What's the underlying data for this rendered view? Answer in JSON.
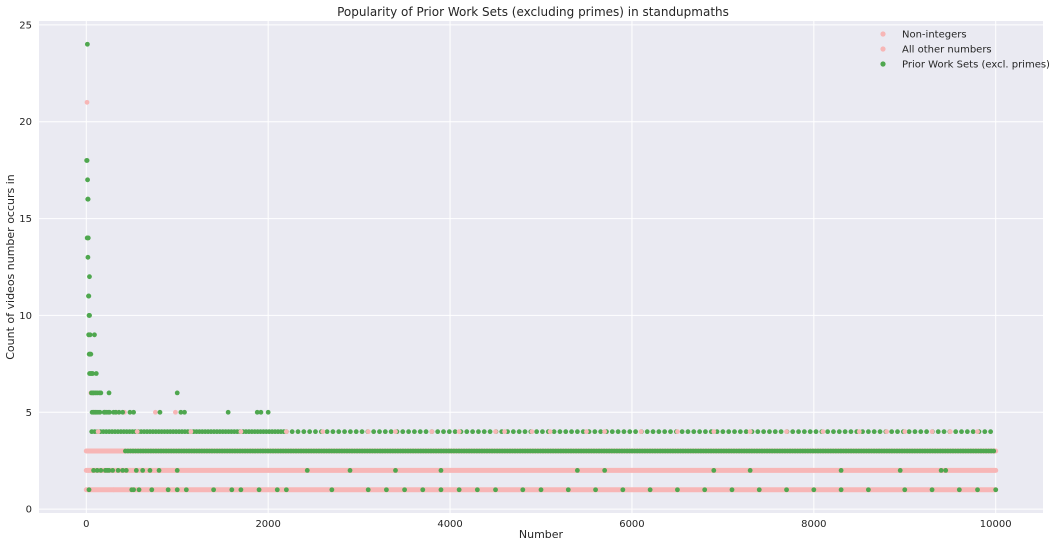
{
  "chart_data": {
    "type": "scatter",
    "title": "Popularity of Prior Work Sets (excluding primes) in standupmaths",
    "xlabel": "Number",
    "ylabel": "Count of videos number occurs in",
    "xlim": [
      -520,
      10520
    ],
    "ylim": [
      -0.2,
      25.2
    ],
    "xticks": [
      0,
      2000,
      4000,
      6000,
      8000,
      10000
    ],
    "xtick_labels": [
      "0",
      "2000",
      "4000",
      "6000",
      "8000",
      "10000"
    ],
    "yticks": [
      0,
      5,
      10,
      15,
      20,
      25
    ],
    "ytick_labels": [
      "0",
      "5",
      "10",
      "15",
      "20",
      "25"
    ],
    "grid": true,
    "legend_position": "top-right",
    "background": "#eaeaf2",
    "series": [
      {
        "name": "Non-integers",
        "color": "#f7b6b6",
        "points": [
          [
            10,
            3
          ],
          [
            25,
            2
          ],
          [
            60,
            2
          ],
          [
            120,
            2
          ],
          [
            300,
            1
          ]
        ]
      },
      {
        "name": "All other numbers",
        "color": "#f7b6b6",
        "points": [
          [
            8,
            21
          ],
          [
            14,
            14
          ],
          [
            30,
            9
          ],
          [
            50,
            6
          ],
          [
            80,
            5
          ],
          [
            130,
            4
          ],
          [
            220,
            5
          ],
          [
            330,
            5
          ],
          [
            420,
            5
          ],
          [
            560,
            4
          ],
          [
            760,
            5
          ],
          [
            980,
            5
          ],
          [
            1150,
            4
          ],
          [
            1700,
            4
          ],
          [
            2200,
            4
          ],
          [
            2600,
            4
          ],
          [
            3100,
            4
          ],
          [
            3400,
            4
          ],
          [
            3800,
            4
          ],
          [
            4100,
            4
          ],
          [
            4500,
            4
          ],
          [
            4600,
            4
          ],
          [
            4900,
            4
          ],
          [
            5100,
            4
          ],
          [
            5500,
            4
          ],
          [
            5700,
            4
          ],
          [
            6100,
            4
          ],
          [
            6500,
            4
          ],
          [
            6900,
            4
          ],
          [
            7300,
            4
          ],
          [
            7700,
            4
          ],
          [
            8100,
            4
          ],
          [
            8500,
            4
          ],
          [
            8800,
            4
          ],
          [
            9000,
            4
          ],
          [
            9300,
            4
          ],
          [
            9500,
            4
          ],
          [
            9800,
            4
          ]
        ],
        "bands": [
          {
            "y": 1,
            "x_from": 0,
            "x_to": 10000
          },
          {
            "y": 2,
            "x_from": 0,
            "x_to": 10000
          },
          {
            "y": 3,
            "x_from": 0,
            "x_to": 10000
          }
        ]
      },
      {
        "name": "Prior Work Sets (excl. primes)",
        "color": "#4fa74f",
        "points": [
          [
            12,
            24
          ],
          [
            4,
            18
          ],
          [
            9,
            18
          ],
          [
            14,
            17
          ],
          [
            16,
            16
          ],
          [
            20,
            16
          ],
          [
            10,
            14
          ],
          [
            22,
            14
          ],
          [
            18,
            13
          ],
          [
            35,
            12
          ],
          [
            24,
            11
          ],
          [
            28,
            11
          ],
          [
            30,
            10
          ],
          [
            36,
            10
          ],
          [
            26,
            9
          ],
          [
            42,
            9
          ],
          [
            90,
            9
          ],
          [
            32,
            8
          ],
          [
            40,
            8
          ],
          [
            50,
            8
          ],
          [
            36,
            7
          ],
          [
            48,
            7
          ],
          [
            60,
            7
          ],
          [
            70,
            7
          ],
          [
            110,
            7
          ],
          [
            56,
            6
          ],
          [
            72,
            6
          ],
          [
            80,
            6
          ],
          [
            100,
            6
          ],
          [
            120,
            6
          ],
          [
            144,
            6
          ],
          [
            160,
            6
          ],
          [
            250,
            6
          ],
          [
            1000,
            6
          ],
          [
            64,
            5
          ],
          [
            81,
            5
          ],
          [
            96,
            5
          ],
          [
            108,
            5
          ],
          [
            128,
            5
          ],
          [
            150,
            5
          ],
          [
            196,
            5
          ],
          [
            200,
            5
          ],
          [
            216,
            5
          ],
          [
            240,
            5
          ],
          [
            256,
            5
          ],
          [
            300,
            5
          ],
          [
            324,
            5
          ],
          [
            360,
            5
          ],
          [
            400,
            5
          ],
          [
            480,
            5
          ],
          [
            520,
            5
          ],
          [
            810,
            5
          ],
          [
            1040,
            5
          ],
          [
            1080,
            5
          ],
          [
            1560,
            5
          ],
          [
            1880,
            5
          ],
          [
            1920,
            5
          ],
          [
            2000,
            5
          ],
          [
            30,
            1
          ],
          [
            500,
            1
          ],
          [
            520,
            1
          ],
          [
            580,
            1
          ],
          [
            720,
            1
          ],
          [
            900,
            1
          ],
          [
            1000,
            1
          ],
          [
            1100,
            1
          ],
          [
            1400,
            1
          ],
          [
            1600,
            1
          ],
          [
            1700,
            1
          ],
          [
            1900,
            1
          ],
          [
            2100,
            1
          ],
          [
            2200,
            1
          ],
          [
            2700,
            1
          ],
          [
            3100,
            1
          ],
          [
            3300,
            1
          ],
          [
            3500,
            1
          ],
          [
            3700,
            1
          ],
          [
            3900,
            1
          ],
          [
            4100,
            1
          ],
          [
            4300,
            1
          ],
          [
            4500,
            1
          ],
          [
            4800,
            1
          ],
          [
            5000,
            1
          ],
          [
            5300,
            1
          ],
          [
            5600,
            1
          ],
          [
            5900,
            1
          ],
          [
            6200,
            1
          ],
          [
            6500,
            1
          ],
          [
            6800,
            1
          ],
          [
            7100,
            1
          ],
          [
            7400,
            1
          ],
          [
            7700,
            1
          ],
          [
            8000,
            1
          ],
          [
            8300,
            1
          ],
          [
            8600,
            1
          ],
          [
            9000,
            1
          ],
          [
            9300,
            1
          ],
          [
            9600,
            1
          ],
          [
            9800,
            1
          ],
          [
            10000,
            1
          ],
          [
            80,
            2
          ],
          [
            120,
            2
          ],
          [
            160,
            2
          ],
          [
            210,
            2
          ],
          [
            230,
            2
          ],
          [
            250,
            2
          ],
          [
            290,
            2
          ],
          [
            350,
            2
          ],
          [
            400,
            2
          ],
          [
            440,
            2
          ],
          [
            550,
            2
          ],
          [
            620,
            2
          ],
          [
            700,
            2
          ],
          [
            800,
            2
          ],
          [
            1000,
            2
          ],
          [
            2430,
            2
          ],
          [
            2900,
            2
          ],
          [
            3400,
            2
          ],
          [
            3900,
            2
          ],
          [
            5400,
            2
          ],
          [
            5700,
            2
          ],
          [
            6900,
            2
          ],
          [
            7300,
            2
          ],
          [
            8300,
            2
          ],
          [
            8950,
            2
          ],
          [
            9400,
            2
          ],
          [
            9450,
            2
          ]
        ],
        "bands": [
          {
            "y": 3,
            "x_from": 430,
            "x_to": 10000,
            "spacing": 28
          },
          {
            "y": 4,
            "x_from": 60,
            "x_to": 2200,
            "spacing": 32
          },
          {
            "y": 4,
            "x_from": 2200,
            "x_to": 10000,
            "spacing": 64
          }
        ]
      }
    ]
  }
}
